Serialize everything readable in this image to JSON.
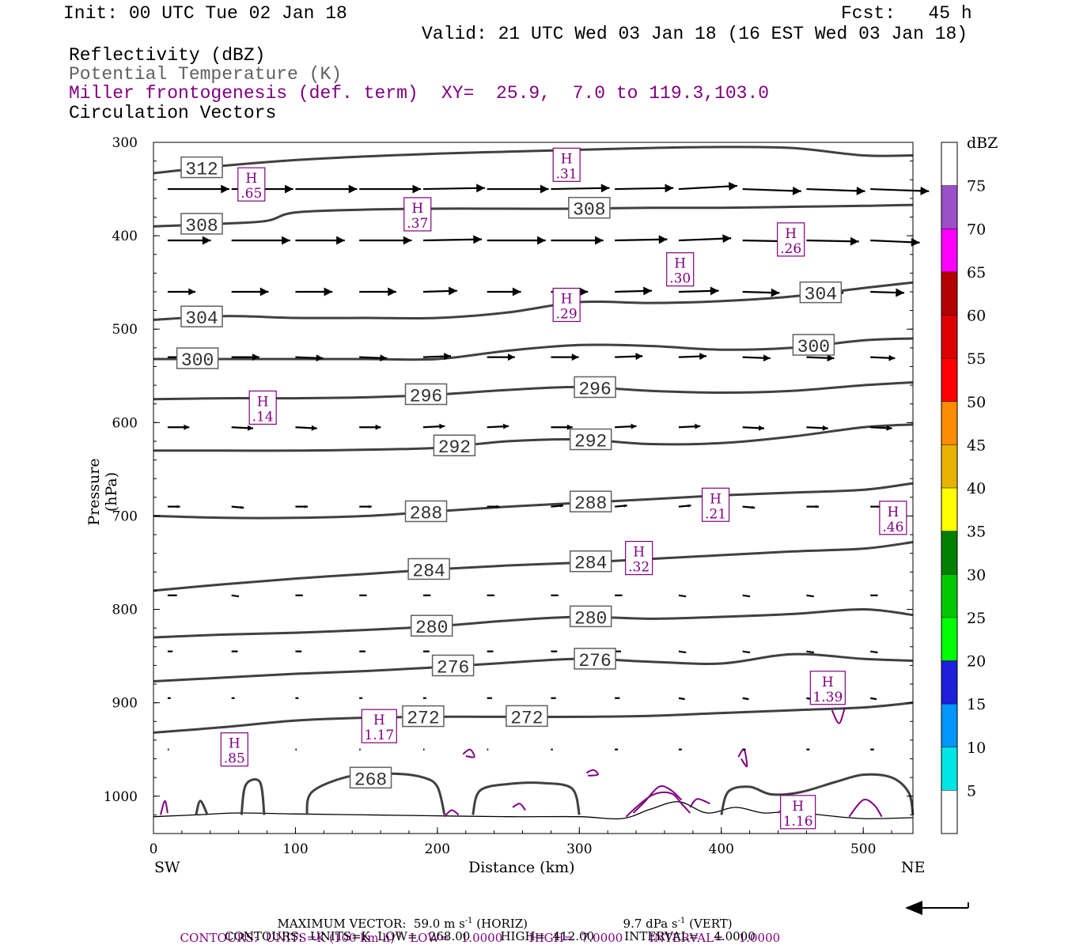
{
  "header": {
    "init": "Init: 00 UTC Tue 02 Jan 18",
    "fcst": "Fcst:   45 h",
    "valid": "Valid: 21 UTC Wed 03 Jan 18 (16 EST Wed 03 Jan 18)",
    "fields": [
      {
        "label": "Reflectivity (dBZ)",
        "color": "#000000"
      },
      {
        "label": "Potential Temperature (K)",
        "color": "#606060"
      },
      {
        "label": "Miller frontogenesis (def. term)",
        "color": "#800080"
      },
      {
        "label": "Circulation Vectors",
        "color": "#000000"
      }
    ],
    "xy": "XY=  25.9,  7.0 to 119.3,103.0"
  },
  "footer": {
    "max_vector": "MAXIMUM VECTOR:  59.0 m s",
    "max_vector_sup": "-1",
    "max_vector_horiz": " (HORIZ)",
    "max_vector_vert": "9.7 dPa s",
    "max_vector_vert_sup": "-1",
    "max_vector_vert_end": " (VERT)",
    "contours_fg": "CONTOURS:  UNITS=K (100 km h)",
    "contours_fg_sup": "-1",
    "contours_fg_end": "  LOW=   1.0000       HIGH=  7.0000       INTERVAL=    1.0000",
    "contours_theta": "CONTOURS:  UNITS=K  LOW=   268.00        HIGH=  412.00        INTERVAL=    4.0000"
  },
  "chart_data": {
    "type": "cross-section",
    "xlabel": "Distance (km)",
    "ylabel": "Pressure (hPa)",
    "xlim": [
      0,
      535
    ],
    "ylim": [
      1040,
      300
    ],
    "x_ticks": [
      0,
      100,
      200,
      300,
      400,
      500
    ],
    "y_ticks": [
      300,
      400,
      500,
      600,
      700,
      800,
      900,
      1000
    ],
    "left_end_label": "SW",
    "right_end_label": "NE",
    "colorbar": {
      "unit": "dBZ",
      "levels": [
        5,
        10,
        15,
        20,
        25,
        30,
        35,
        40,
        45,
        50,
        55,
        60,
        65,
        70,
        75
      ],
      "colors": [
        "#ffffff",
        "#00e5e5",
        "#0096ff",
        "#1e1edc",
        "#00ff00",
        "#00c800",
        "#008000",
        "#ffff00",
        "#e6b400",
        "#ff8c00",
        "#ff0000",
        "#dc0000",
        "#b40000",
        "#ff00ff",
        "#9b50c8",
        "#ffffff"
      ]
    },
    "theta_contours": [
      {
        "level": 312,
        "points": [
          [
            0,
            333
          ],
          [
            50,
            325
          ],
          [
            100,
            319
          ],
          [
            150,
            315
          ],
          [
            200,
            312
          ],
          [
            250,
            310
          ],
          [
            300,
            308
          ],
          [
            350,
            306
          ],
          [
            400,
            305
          ],
          [
            450,
            306
          ],
          [
            500,
            314
          ],
          [
            535,
            314
          ]
        ],
        "label_x": 34
      },
      {
        "level": 308,
        "points": [
          [
            0,
            390
          ],
          [
            50,
            387
          ],
          [
            80,
            384
          ],
          [
            100,
            375
          ],
          [
            150,
            372
          ],
          [
            200,
            371
          ],
          [
            250,
            371
          ],
          [
            300,
            371
          ],
          [
            350,
            370
          ],
          [
            400,
            370
          ],
          [
            450,
            369
          ],
          [
            500,
            368
          ],
          [
            535,
            367
          ]
        ],
        "label_x": 34,
        "label2_x": 307
      },
      {
        "level": 304,
        "points": [
          [
            0,
            490
          ],
          [
            50,
            486
          ],
          [
            100,
            488
          ],
          [
            150,
            488
          ],
          [
            200,
            488
          ],
          [
            250,
            482
          ],
          [
            300,
            471
          ],
          [
            350,
            472
          ],
          [
            400,
            470
          ],
          [
            450,
            465
          ],
          [
            500,
            456
          ],
          [
            535,
            450
          ]
        ],
        "label_x": 34,
        "label2_x": 470
      },
      {
        "level": 300,
        "points": [
          [
            0,
            532
          ],
          [
            50,
            532
          ],
          [
            100,
            532
          ],
          [
            150,
            532
          ],
          [
            200,
            532
          ],
          [
            250,
            523
          ],
          [
            300,
            517
          ],
          [
            350,
            518
          ],
          [
            400,
            522
          ],
          [
            450,
            520
          ],
          [
            500,
            512
          ],
          [
            535,
            510
          ]
        ],
        "label_x": 31,
        "label2_x": 465
      },
      {
        "level": 296,
        "points": [
          [
            0,
            575
          ],
          [
            50,
            574
          ],
          [
            100,
            574
          ],
          [
            150,
            573
          ],
          [
            200,
            570
          ],
          [
            250,
            565
          ],
          [
            300,
            562
          ],
          [
            350,
            566
          ],
          [
            400,
            568
          ],
          [
            450,
            566
          ],
          [
            500,
            560
          ],
          [
            535,
            557
          ]
        ],
        "label_x": 192,
        "label2_x": 311
      },
      {
        "level": 292,
        "points": [
          [
            0,
            630
          ],
          [
            50,
            630
          ],
          [
            100,
            630
          ],
          [
            150,
            629
          ],
          [
            200,
            627
          ],
          [
            250,
            620
          ],
          [
            300,
            618
          ],
          [
            350,
            623
          ],
          [
            400,
            622
          ],
          [
            450,
            615
          ],
          [
            500,
            605
          ],
          [
            535,
            602
          ]
        ],
        "label_x": 212,
        "label2_x": 308
      },
      {
        "level": 288,
        "points": [
          [
            0,
            700
          ],
          [
            50,
            702
          ],
          [
            100,
            702
          ],
          [
            150,
            700
          ],
          [
            200,
            695
          ],
          [
            250,
            690
          ],
          [
            300,
            686
          ],
          [
            350,
            682
          ],
          [
            400,
            678
          ],
          [
            450,
            675
          ],
          [
            500,
            672
          ],
          [
            535,
            665
          ]
        ],
        "label_x": 192,
        "label2_x": 308
      },
      {
        "level": 284,
        "points": [
          [
            0,
            780
          ],
          [
            50,
            773
          ],
          [
            100,
            767
          ],
          [
            150,
            762
          ],
          [
            200,
            757
          ],
          [
            250,
            753
          ],
          [
            300,
            750
          ],
          [
            350,
            746
          ],
          [
            400,
            742
          ],
          [
            450,
            738
          ],
          [
            500,
            735
          ],
          [
            535,
            728
          ]
        ],
        "label_x": 194,
        "label2_x": 308
      },
      {
        "level": 280,
        "points": [
          [
            0,
            830
          ],
          [
            50,
            827
          ],
          [
            100,
            825
          ],
          [
            150,
            822
          ],
          [
            200,
            818
          ],
          [
            250,
            812
          ],
          [
            300,
            808
          ],
          [
            350,
            810
          ],
          [
            400,
            808
          ],
          [
            450,
            805
          ],
          [
            500,
            800
          ],
          [
            535,
            806
          ]
        ],
        "label_x": 196,
        "label2_x": 308
      },
      {
        "level": 276,
        "points": [
          [
            0,
            877
          ],
          [
            50,
            873
          ],
          [
            100,
            869
          ],
          [
            150,
            866
          ],
          [
            200,
            862
          ],
          [
            250,
            857
          ],
          [
            300,
            853
          ],
          [
            350,
            856
          ],
          [
            400,
            858
          ],
          [
            450,
            848
          ],
          [
            500,
            853
          ],
          [
            535,
            855
          ]
        ],
        "label_x": 211,
        "label2_x": 311
      },
      {
        "level": 272,
        "points": [
          [
            0,
            932
          ],
          [
            50,
            926
          ],
          [
            100,
            919
          ],
          [
            150,
            916
          ],
          [
            200,
            915
          ],
          [
            250,
            915
          ],
          [
            300,
            915
          ],
          [
            350,
            914
          ],
          [
            400,
            911
          ],
          [
            450,
            908
          ],
          [
            500,
            905
          ],
          [
            535,
            900
          ]
        ],
        "label_x": 190,
        "label2_x": 263
      }
    ],
    "vector_rows": [
      {
        "p": 350,
        "u": [
          1.0,
          1.0,
          1.0,
          1.0,
          1.0,
          1.0,
          0.95,
          0.95,
          0.95,
          0.95,
          0.95,
          0.95
        ],
        "w": [
          0,
          0,
          0,
          0,
          -0.05,
          0,
          -0.05,
          -0.05,
          -0.15,
          0.1,
          0.1,
          0.1
        ]
      },
      {
        "p": 405,
        "u": [
          0.7,
          0.95,
          0.8,
          0.85,
          0.95,
          0.95,
          0.85,
          0.85,
          0.85,
          0.85,
          0.85,
          0.8
        ],
        "w": [
          0,
          0,
          0,
          0,
          -0.05,
          0,
          0,
          -0.05,
          -0.1,
          0.05,
          0.05,
          0.1
        ]
      },
      {
        "p": 460,
        "u": [
          0.45,
          0.6,
          0.6,
          0.6,
          0.55,
          0.55,
          0.6,
          0.6,
          0.65,
          0.6,
          0.6,
          0.55
        ],
        "w": [
          0,
          0,
          0,
          0,
          -0.05,
          0,
          0,
          -0.05,
          -0.05,
          0.05,
          0.05,
          0.05
        ]
      },
      {
        "p": 530,
        "u": [
          0.4,
          0.45,
          0.45,
          0.45,
          0.45,
          0.45,
          0.45,
          0.45,
          0.45,
          0.45,
          0.45,
          0.4
        ],
        "w": [
          0,
          0,
          0.05,
          0.05,
          -0.05,
          0,
          0,
          -0.05,
          -0.05,
          0.05,
          0.05,
          0.05
        ]
      },
      {
        "p": 605,
        "u": [
          0.35,
          0.35,
          0.35,
          0.35,
          0.35,
          0.35,
          0.35,
          0.35,
          0.35,
          0.35,
          0.35,
          0.35
        ],
        "w": [
          0,
          0.05,
          0.05,
          0,
          -0.05,
          -0.05,
          0,
          -0.05,
          -0.05,
          0.05,
          0.05,
          0.05
        ]
      },
      {
        "p": 690,
        "u": [
          0.2,
          0.2,
          0.2,
          0.2,
          0.2,
          0.2,
          0.2,
          0.2,
          0.2,
          0.2,
          0.2,
          0.2
        ],
        "w": [
          0,
          0.05,
          0,
          0,
          -0.05,
          0,
          -0.05,
          -0.05,
          -0.05,
          0.05,
          0,
          0
        ]
      },
      {
        "p": 785,
        "u": [
          0.15,
          0.12,
          0.12,
          0.12,
          0.12,
          0.12,
          0.12,
          0.12,
          0.12,
          0.12,
          0.12,
          0.12
        ],
        "w": [
          0,
          0.05,
          0,
          0,
          0,
          0,
          0,
          0,
          0.05,
          0.05,
          0.05,
          0
        ]
      },
      {
        "p": 845,
        "u": [
          0.08,
          0.1,
          0.1,
          0.1,
          0.1,
          0.1,
          0.1,
          0.1,
          0.12,
          0.12,
          0.12,
          0.12
        ],
        "w": [
          0,
          0,
          0,
          0,
          0,
          0,
          0,
          0,
          0.05,
          0.05,
          0.05,
          0.05
        ]
      },
      {
        "p": 895,
        "u": [
          0.05,
          0.05,
          0.05,
          0.05,
          0.05,
          0.08,
          0.08,
          0.08,
          0.1,
          0.1,
          0.1,
          0.1
        ],
        "w": [
          0,
          0,
          0,
          0,
          0,
          0,
          0,
          0,
          0.05,
          0.05,
          0.05,
          0.05
        ]
      },
      {
        "p": 950,
        "u": [
          0.02,
          0.02,
          0.02,
          0.02,
          0.02,
          0.02,
          0.03,
          0.05,
          0.05,
          0.05,
          0.05,
          0.06
        ],
        "w": [
          0,
          0,
          0,
          0,
          0,
          0,
          0,
          0,
          0,
          0,
          0,
          0
        ]
      }
    ],
    "vector_x": [
      10,
      55,
      100,
      145,
      190,
      235,
      280,
      325,
      370,
      415,
      460,
      505
    ],
    "frontogenesis_highs": [
      {
        "x": 69,
        "p": 345,
        "value": ".65"
      },
      {
        "x": 186,
        "p": 377,
        "value": ".37"
      },
      {
        "x": 291,
        "p": 324,
        "value": ".31"
      },
      {
        "x": 371,
        "p": 436,
        "value": ".30"
      },
      {
        "x": 449,
        "p": 404,
        "value": ".26"
      },
      {
        "x": 291,
        "p": 474,
        "value": ".29"
      },
      {
        "x": 77,
        "p": 584,
        "value": ".14"
      },
      {
        "x": 396,
        "p": 688,
        "value": ".21"
      },
      {
        "x": 521,
        "p": 702,
        "value": ".46"
      },
      {
        "x": 342,
        "p": 745,
        "value": ".32"
      },
      {
        "x": 159,
        "p": 925,
        "value": "1.17"
      },
      {
        "x": 57,
        "p": 950,
        "value": ".85"
      },
      {
        "x": 475,
        "p": 884,
        "value": "1.39"
      },
      {
        "x": 454,
        "p": 1017,
        "value": "1.16"
      }
    ],
    "maximum_vector_horiz_ms": 59.0,
    "maximum_vector_vert_dPas": 9.7
  }
}
